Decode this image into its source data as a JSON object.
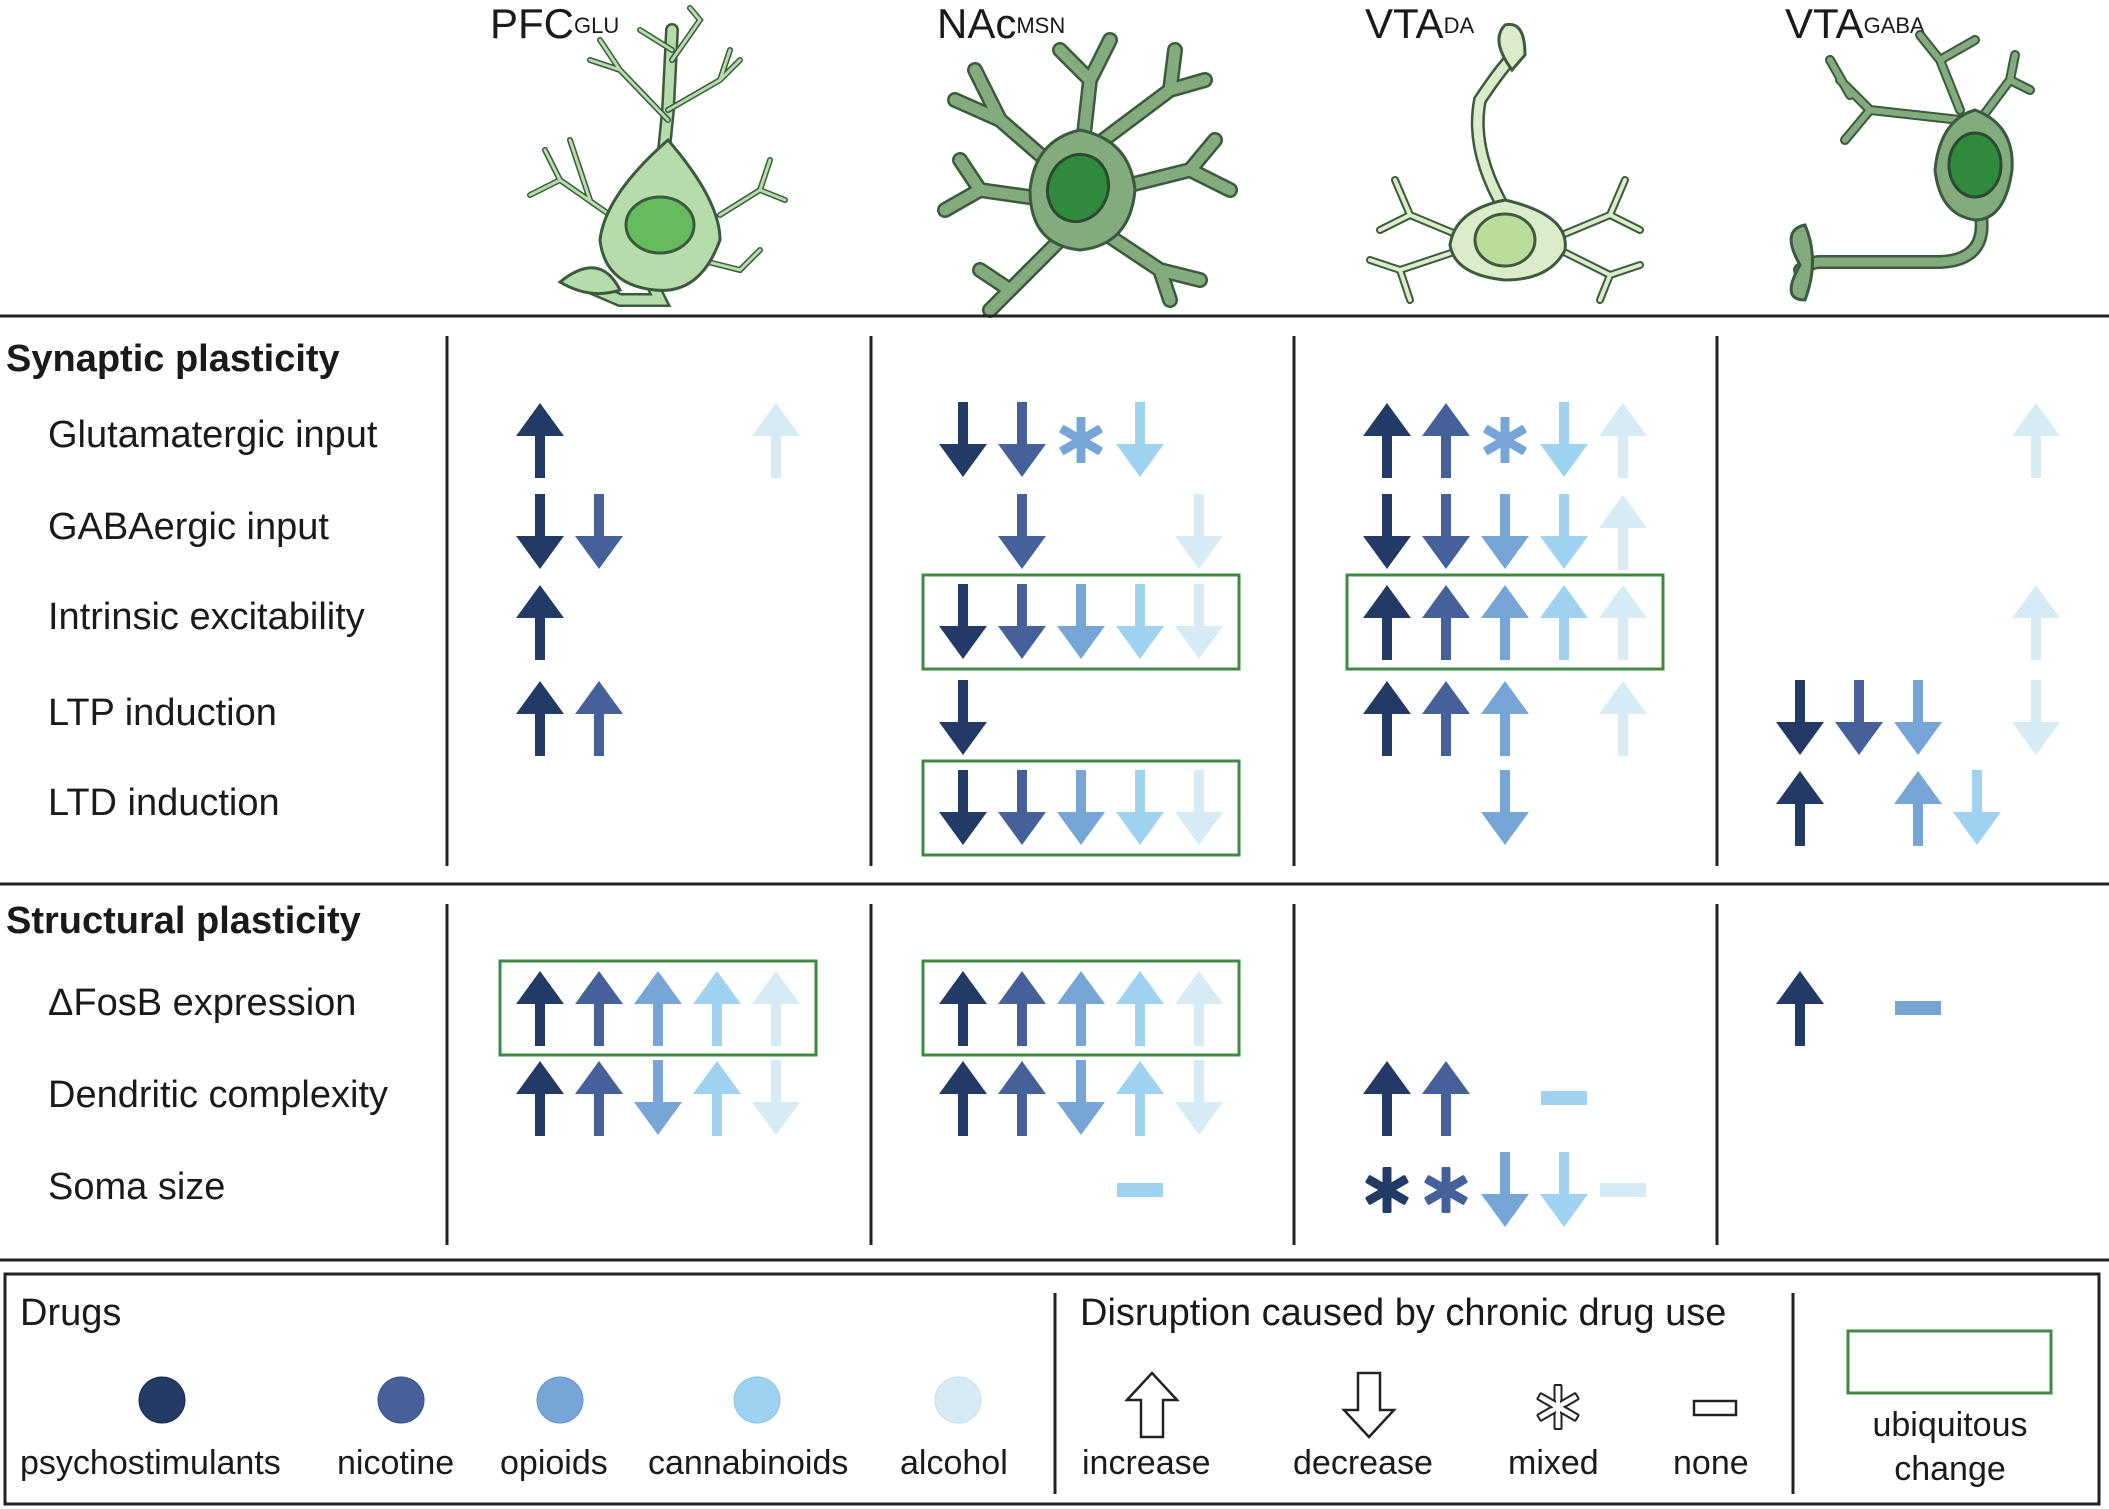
{
  "colors": {
    "psychostimulants": "#243a66",
    "nicotine": "#46619a",
    "opioids": "#77a5d6",
    "cannabinoids": "#9fd1f1",
    "alcohol": "#d6ebf4",
    "ubiquitous_box": "#3e8a43",
    "rule": "#222222"
  },
  "columns": [
    {
      "id": "pfc",
      "base": "PFC",
      "sup": "GLU"
    },
    {
      "id": "nac",
      "base": "NAc",
      "sup": "MSN"
    },
    {
      "id": "vta_da",
      "base": "VTA",
      "sup": "DA"
    },
    {
      "id": "vta_gaba",
      "base": "VTA",
      "sup": "GABA"
    }
  ],
  "sections": [
    {
      "title": "Synaptic plasticity",
      "rows": [
        {
          "label": "Glutamatergic input",
          "cells": [
            [
              "up",
              "",
              "",
              "",
              "up"
            ],
            [
              "down",
              "down",
              "mixed",
              "down",
              ""
            ],
            [
              "up",
              "up",
              "mixed",
              "down",
              "up"
            ],
            [
              "",
              "",
              "",
              "",
              "up"
            ]
          ],
          "boxes": [
            false,
            false,
            false,
            false
          ]
        },
        {
          "label": "GABAergic input",
          "cells": [
            [
              "down",
              "down",
              "",
              "",
              ""
            ],
            [
              "",
              "down",
              "",
              "",
              "down"
            ],
            [
              "down",
              "down",
              "down",
              "down",
              "up"
            ],
            [
              "",
              "",
              "",
              "",
              ""
            ]
          ],
          "boxes": [
            false,
            false,
            false,
            false
          ]
        },
        {
          "label": "Intrinsic excitability",
          "cells": [
            [
              "up",
              "",
              "",
              "",
              ""
            ],
            [
              "down",
              "down",
              "down",
              "down",
              "down"
            ],
            [
              "up",
              "up",
              "up",
              "up",
              "up"
            ],
            [
              "",
              "",
              "",
              "",
              "up"
            ]
          ],
          "boxes": [
            false,
            true,
            true,
            false
          ]
        },
        {
          "label": "LTP induction",
          "cells": [
            [
              "up",
              "up",
              "",
              "",
              ""
            ],
            [
              "down",
              "",
              "",
              "",
              ""
            ],
            [
              "up",
              "up",
              "up",
              "",
              "up"
            ],
            [
              "down",
              "down",
              "down",
              "",
              "down"
            ]
          ],
          "boxes": [
            false,
            false,
            false,
            false
          ]
        },
        {
          "label": "LTD induction",
          "cells": [
            [
              "",
              "",
              "",
              "",
              ""
            ],
            [
              "down",
              "down",
              "down",
              "down",
              "down"
            ],
            [
              "",
              "",
              "down",
              "",
              ""
            ],
            [
              "up",
              "",
              "up",
              "down",
              ""
            ]
          ],
          "boxes": [
            false,
            true,
            false,
            false
          ]
        }
      ]
    },
    {
      "title": "Structural plasticity",
      "rows": [
        {
          "label": "ΔFosB expression",
          "cells": [
            [
              "up",
              "up",
              "up",
              "up",
              "up"
            ],
            [
              "up",
              "up",
              "up",
              "up",
              "up"
            ],
            [
              "",
              "",
              "",
              "",
              ""
            ],
            [
              "up",
              "",
              "none",
              "",
              ""
            ]
          ],
          "boxes": [
            true,
            true,
            false,
            false
          ]
        },
        {
          "label": "Dendritic complexity",
          "cells": [
            [
              "up",
              "up",
              "down",
              "up",
              "down"
            ],
            [
              "up",
              "up",
              "down",
              "up",
              "down"
            ],
            [
              "up",
              "up",
              "",
              "none",
              ""
            ],
            [
              "",
              "",
              "",
              "",
              ""
            ]
          ],
          "boxes": [
            false,
            false,
            false,
            false
          ]
        },
        {
          "label": "Soma size",
          "cells": [
            [
              "",
              "",
              "",
              "",
              ""
            ],
            [
              "",
              "",
              "",
              "none",
              ""
            ],
            [
              "mixed",
              "mixed",
              "down",
              "down",
              "none"
            ],
            [
              "",
              "",
              "",
              "",
              ""
            ]
          ],
          "boxes": [
            false,
            false,
            false,
            false
          ]
        }
      ]
    }
  ],
  "legend": {
    "drugs_title": "Drugs",
    "drugs": [
      {
        "key": "psychostimulants",
        "label": "psychostimulants"
      },
      {
        "key": "nicotine",
        "label": "nicotine"
      },
      {
        "key": "opioids",
        "label": "opioids"
      },
      {
        "key": "cannabinoids",
        "label": "cannabinoids"
      },
      {
        "key": "alcohol",
        "label": "alcohol"
      }
    ],
    "disruption_title": "Disruption caused by chronic drug use",
    "symbols": [
      {
        "type": "up",
        "label": "increase"
      },
      {
        "type": "down",
        "label": "decrease"
      },
      {
        "type": "mixed",
        "label": "mixed"
      },
      {
        "type": "none",
        "label": "none"
      }
    ],
    "box_label_line1": "ubiquitous",
    "box_label_line2": "change"
  }
}
